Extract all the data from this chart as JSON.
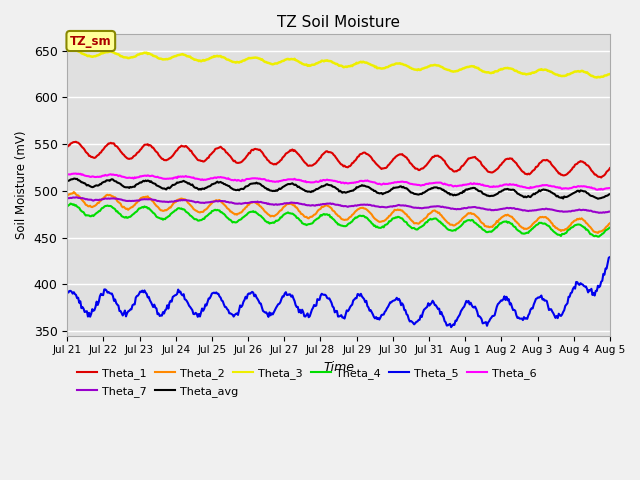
{
  "title": "TZ Soil Moisture",
  "ylabel": "Soil Moisture (mV)",
  "xlabel": "Time",
  "figure_bg_color": "#f0f0f0",
  "plot_bg_color": "#e0e0e0",
  "ylim": [
    345,
    668
  ],
  "yticks": [
    350,
    400,
    450,
    500,
    550,
    600,
    650
  ],
  "x_tick_labels": [
    "Jul 21",
    "Jul 22",
    "Jul 23",
    "Jul 24",
    "Jul 25",
    "Jul 26",
    "Jul 27",
    "Jul 28",
    "Jul 29",
    "Jul 30",
    "Jul 31",
    "Aug 1",
    "Aug 2",
    "Aug 3",
    "Aug 4",
    "Aug 5"
  ],
  "series_order": [
    "Theta_1",
    "Theta_2",
    "Theta_3",
    "Theta_4",
    "Theta_5",
    "Theta_6",
    "Theta_7",
    "Theta_avg"
  ],
  "series": {
    "Theta_1": {
      "color": "#dd0000",
      "lw": 1.5
    },
    "Theta_2": {
      "color": "#ff8800",
      "lw": 1.5
    },
    "Theta_3": {
      "color": "#eeee00",
      "lw": 1.8
    },
    "Theta_4": {
      "color": "#00dd00",
      "lw": 1.5
    },
    "Theta_5": {
      "color": "#0000ee",
      "lw": 1.5
    },
    "Theta_6": {
      "color": "#ff00ff",
      "lw": 1.5
    },
    "Theta_7": {
      "color": "#9900cc",
      "lw": 1.5
    },
    "Theta_avg": {
      "color": "#000000",
      "lw": 1.5
    }
  },
  "annotation_text": "TZ_sm",
  "annotation_color": "#aa0000",
  "annotation_bg": "#ffff99",
  "annotation_border": "#888800",
  "n_points": 500
}
